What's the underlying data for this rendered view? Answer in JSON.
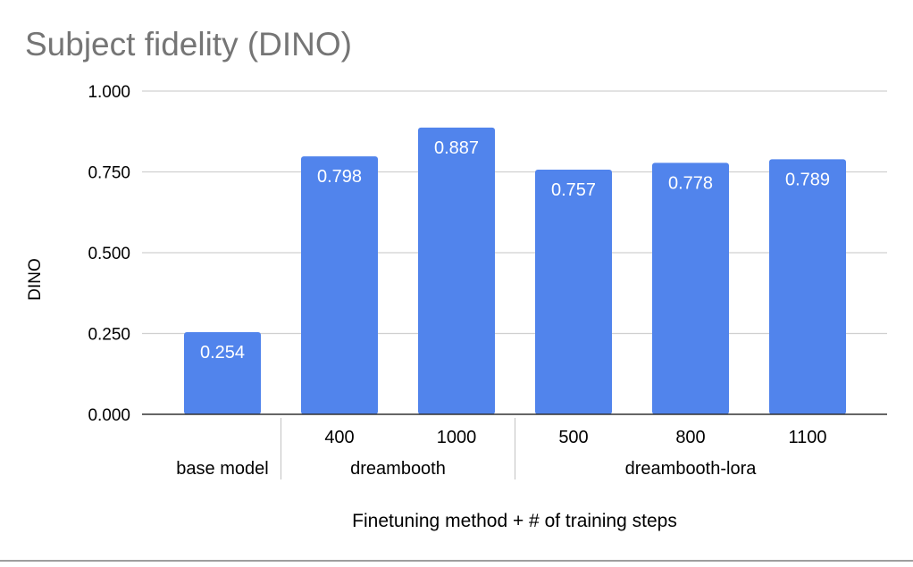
{
  "chart_data": {
    "type": "bar",
    "title": "Subject fidelity (DINO)",
    "xlabel": "Finetuning method + # of training steps",
    "ylabel": "DINO",
    "ylim": [
      0,
      1
    ],
    "yticks": [
      "0.000",
      "0.250",
      "0.500",
      "0.750",
      "1.000"
    ],
    "grid": true,
    "legend": "none",
    "bar_color": "#5184ec",
    "categories": [
      {
        "step": "",
        "group": "base model"
      },
      {
        "step": "400",
        "group": "dreambooth"
      },
      {
        "step": "1000",
        "group": "dreambooth"
      },
      {
        "step": "500",
        "group": "dreambooth-lora"
      },
      {
        "step": "800",
        "group": "dreambooth-lora"
      },
      {
        "step": "1100",
        "group": "dreambooth-lora"
      }
    ],
    "groups": [
      {
        "label": "base model",
        "count": 1
      },
      {
        "label": "dreambooth",
        "count": 2
      },
      {
        "label": "dreambooth-lora",
        "count": 3
      }
    ],
    "values": [
      0.254,
      0.798,
      0.887,
      0.757,
      0.778,
      0.789
    ],
    "data_labels": [
      "0.254",
      "0.798",
      "0.887",
      "0.757",
      "0.778",
      "0.789"
    ]
  }
}
